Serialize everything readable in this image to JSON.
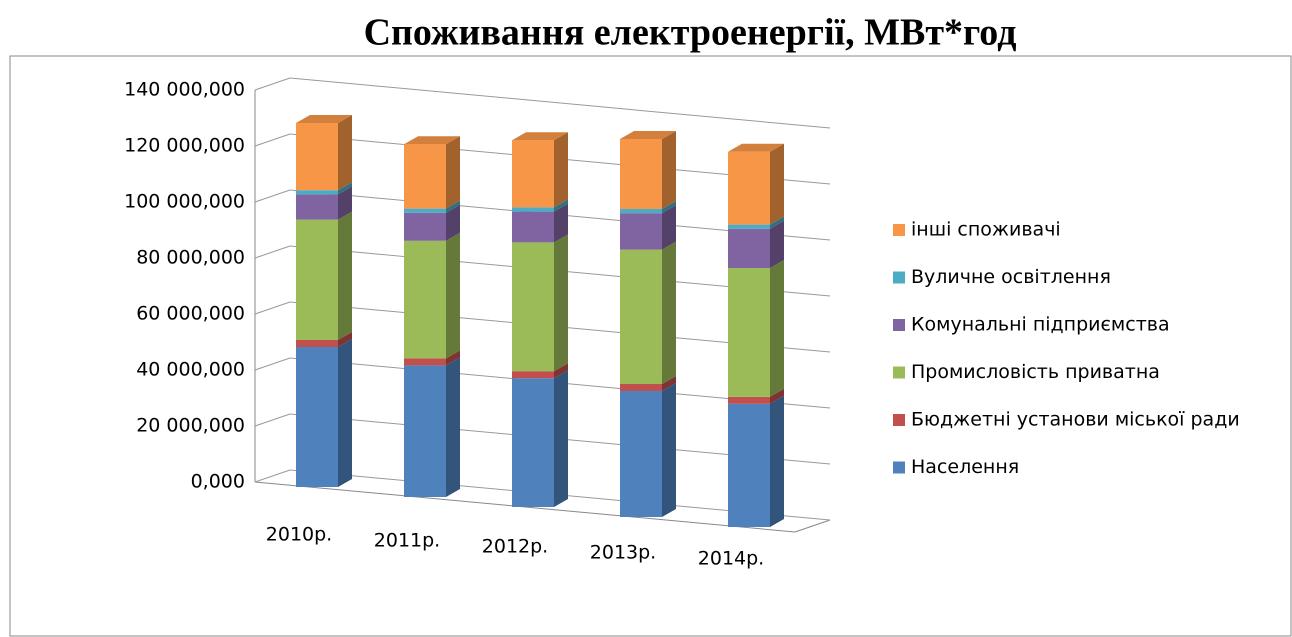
{
  "chart_data": {
    "type": "bar3d_stacked",
    "title": "Споживання електроенергії, МВт*год",
    "categories": [
      "2010р.",
      "2011р.",
      "2012р.",
      "2013р.",
      "2014р."
    ],
    "series": [
      {
        "name": "Населення",
        "color": "#4f81bd",
        "values": [
          50000000,
          47000000,
          46000000,
          45000000,
          44000000
        ]
      },
      {
        "name": "Бюджетні установи міської ради",
        "color": "#c0504d",
        "values": [
          2500000,
          2500000,
          2500000,
          2500000,
          2500000
        ]
      },
      {
        "name": "Промисловість приватна",
        "color": "#9bbb59",
        "values": [
          43000000,
          42000000,
          46000000,
          48000000,
          46000000
        ]
      },
      {
        "name": "Комунальні підприємства",
        "color": "#8064a2",
        "values": [
          9000000,
          10000000,
          11000000,
          13000000,
          14000000
        ]
      },
      {
        "name": "Вуличне освітлення",
        "color": "#4bacc6",
        "values": [
          1500000,
          1500000,
          1500000,
          1500000,
          1500000
        ]
      },
      {
        "name": "інші споживачі",
        "color": "#f79646",
        "values": [
          24000000,
          23000000,
          24000000,
          25000000,
          26000000
        ]
      }
    ],
    "ylim": [
      0,
      140000000
    ],
    "yticks": [
      {
        "value": 0,
        "label": "0,000"
      },
      {
        "value": 20000000,
        "label": "20 000,000"
      },
      {
        "value": 40000000,
        "label": "40 000,000"
      },
      {
        "value": 60000000,
        "label": "60 000,000"
      },
      {
        "value": 80000000,
        "label": "80 000,000"
      },
      {
        "value": 100000000,
        "label": "100 000,000"
      },
      {
        "value": 120000000,
        "label": "120 000,000"
      },
      {
        "value": 140000000,
        "label": "140 000,000"
      }
    ],
    "grid": true,
    "legend": "right"
  }
}
